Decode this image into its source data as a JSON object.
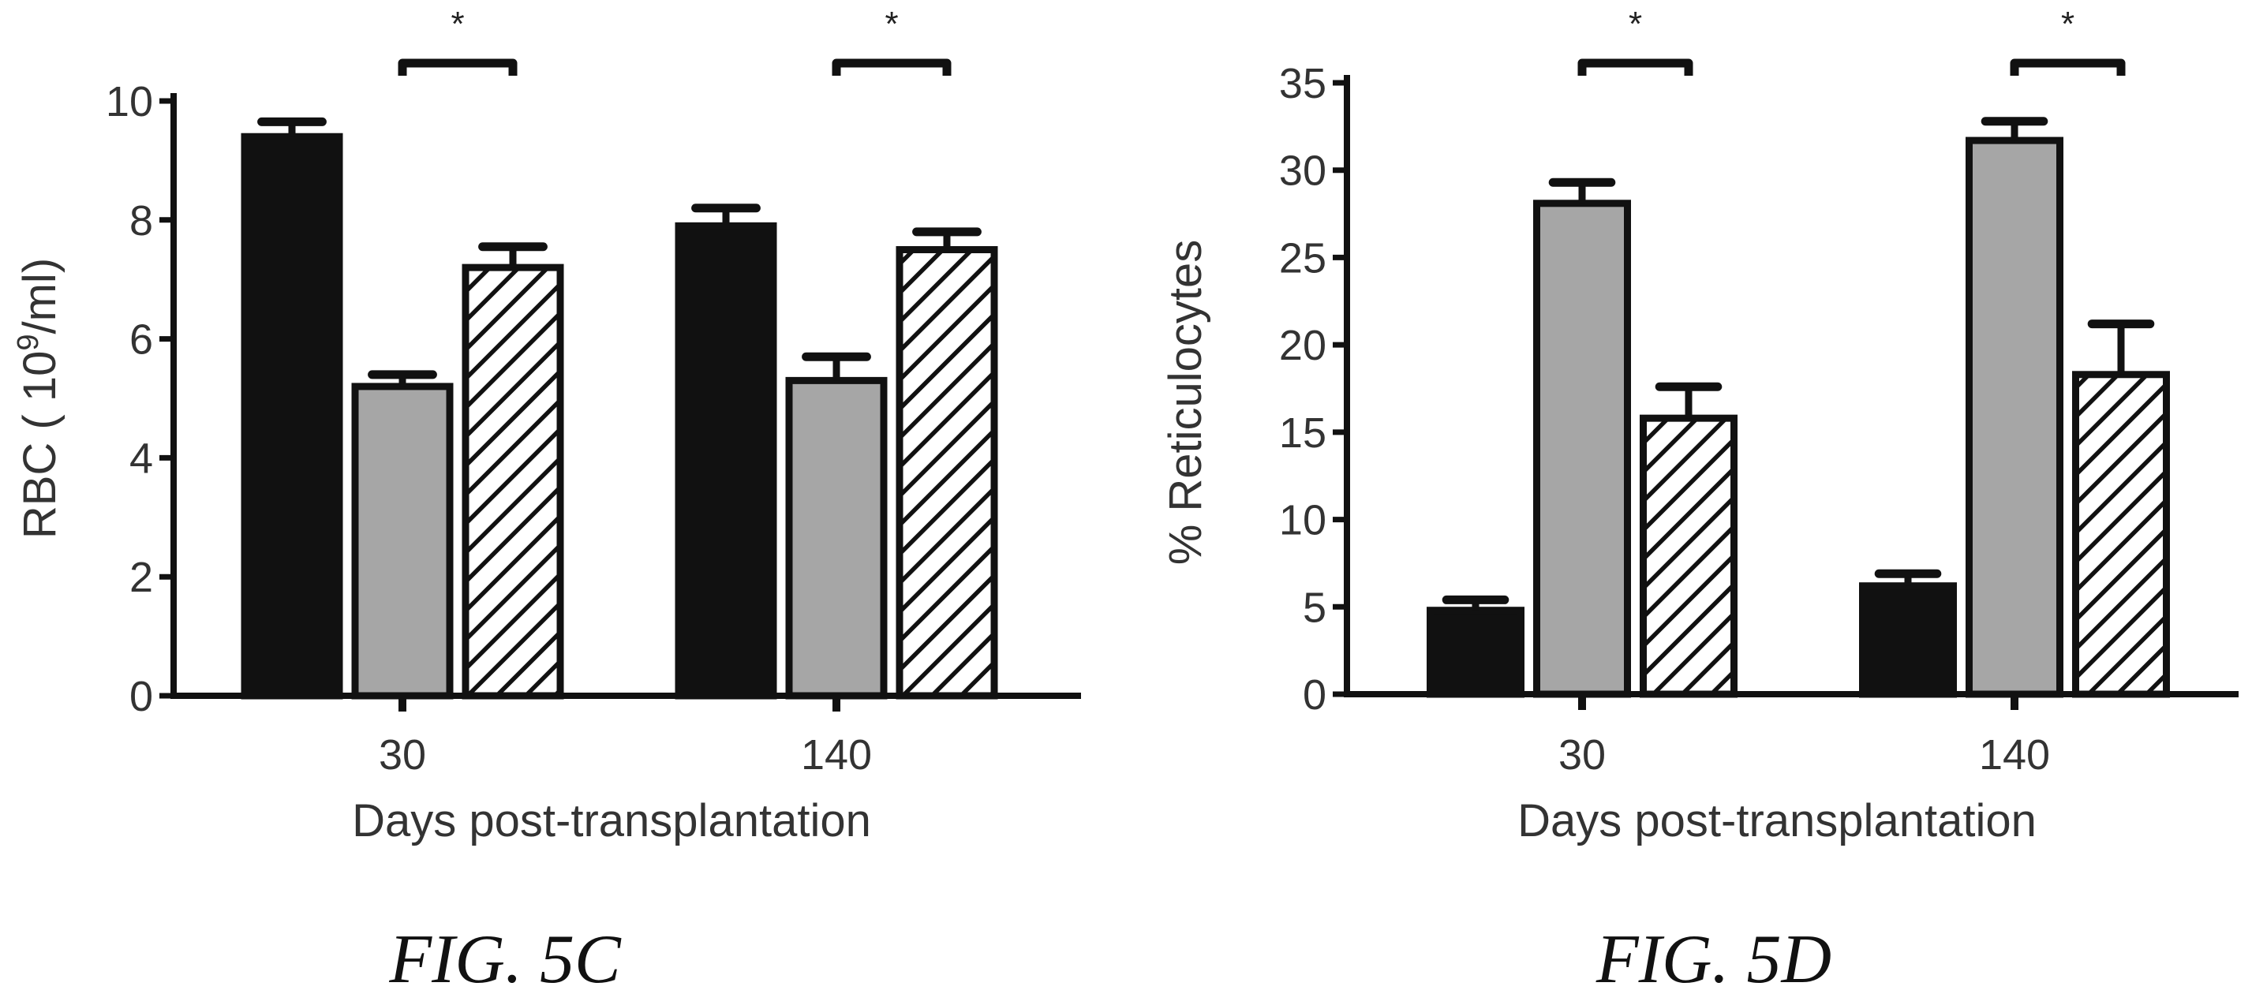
{
  "charts": [
    {
      "chart_data": {
        "type": "bar",
        "categories": [
          "30",
          "140"
        ],
        "series": [
          {
            "values": [
              9.4,
              7.9
            ],
            "errors": [
              0.25,
              0.3
            ],
            "fill": "#111111",
            "pattern": "solid"
          },
          {
            "values": [
              5.2,
              5.3
            ],
            "errors": [
              0.2,
              0.4
            ],
            "fill": "#a6a6a6",
            "pattern": "solid"
          },
          {
            "values": [
              7.2,
              7.5
            ],
            "errors": [
              0.35,
              0.3
            ],
            "fill": "#ffffff",
            "pattern": "hatch"
          }
        ],
        "xlabel": "Days post-transplantation",
        "ylabel_main": "RBC ( 10",
        "ylabel_sup": "9",
        "ylabel_tail": "/ml)",
        "ylim": [
          0,
          10
        ],
        "yticks": [
          0,
          2,
          4,
          6,
          8,
          10
        ],
        "significance": [
          {
            "group": 0,
            "from_series": 1,
            "to_series": 2,
            "label": "*"
          },
          {
            "group": 1,
            "from_series": 1,
            "to_series": 2,
            "label": "*"
          }
        ]
      },
      "caption": "FIG. 5C"
    },
    {
      "chart_data": {
        "type": "bar",
        "categories": [
          "30",
          "140"
        ],
        "series": [
          {
            "values": [
              4.8,
              6.2
            ],
            "errors": [
              0.6,
              0.7
            ],
            "fill": "#111111",
            "pattern": "solid"
          },
          {
            "values": [
              28.1,
              31.7
            ],
            "errors": [
              1.2,
              1.1
            ],
            "fill": "#a6a6a6",
            "pattern": "solid"
          },
          {
            "values": [
              15.8,
              18.3
            ],
            "errors": [
              1.8,
              2.9
            ],
            "fill": "#ffffff",
            "pattern": "hatch"
          }
        ],
        "xlabel": "Days post-transplantation",
        "ylabel_main": "% Reticulocytes",
        "ylabel_sup": "",
        "ylabel_tail": "",
        "ylim": [
          0,
          35
        ],
        "yticks": [
          0,
          5,
          10,
          15,
          20,
          25,
          30,
          35
        ],
        "significance": [
          {
            "group": 0,
            "from_series": 1,
            "to_series": 2,
            "label": "*"
          },
          {
            "group": 1,
            "from_series": 1,
            "to_series": 2,
            "label": "*"
          }
        ]
      },
      "caption": "FIG. 5D"
    }
  ]
}
